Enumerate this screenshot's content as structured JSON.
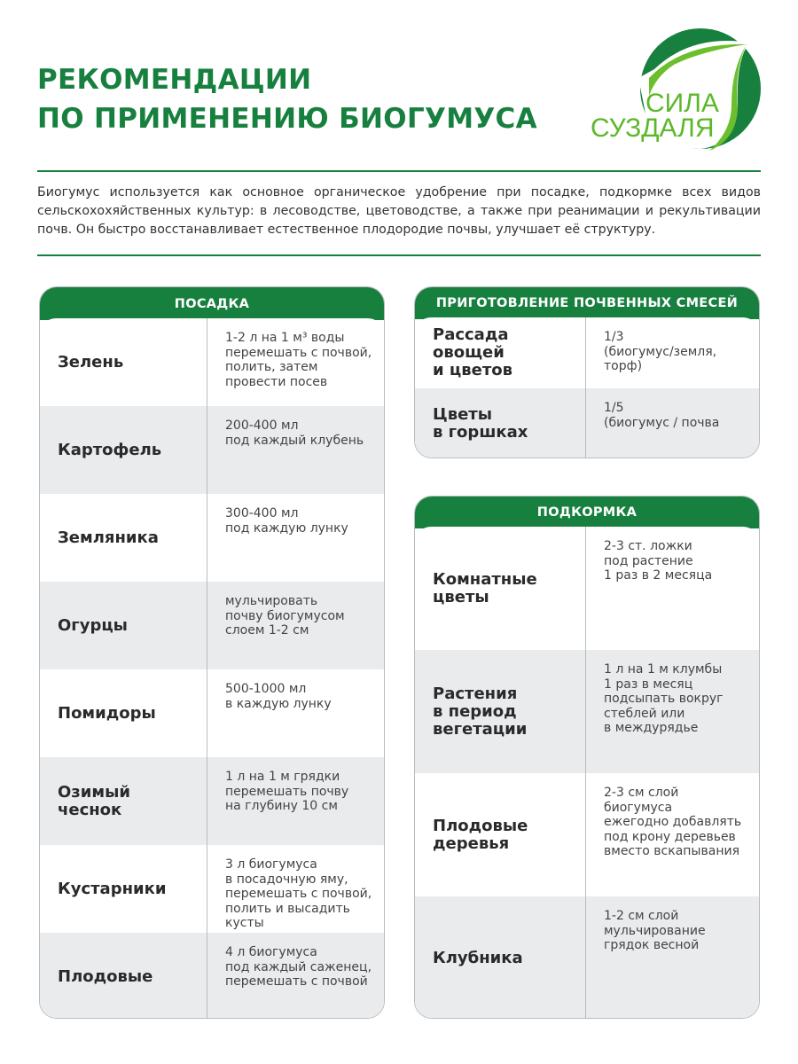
{
  "title": {
    "line1": "РЕКОМЕНДАЦИИ",
    "line2": "ПО ПРИМЕНЕНИЮ БИОГУМУСА"
  },
  "logo": {
    "line1": "СИЛА",
    "line2": "СУЗДАЛЯ",
    "colors": {
      "dark": "#17803f",
      "light": "#6cbf2c"
    }
  },
  "intro": "Биогумус используется как основное органическое удобрение при посадке, подкормке всех видов сельскохохяйственных культур: в лесоводстве, цветоводстве, а также при реанимации и рекультивации почв. Он быстро восстанавливает естественное плодородие почвы, улучшает её структуру.",
  "colors": {
    "accent": "#17803f",
    "row_alt": "#eaebed"
  },
  "planting": {
    "header": "ПОСАДКА",
    "rows": [
      {
        "crop": "Зелень",
        "dose": "1-2 л на 1 м³ воды\nперемешать с почвой,\nполить, затем\nпровести посев"
      },
      {
        "crop": "Картофель",
        "dose": "200-400 мл\nпод каждый клубень"
      },
      {
        "crop": "Земляника",
        "dose": "300-400 мл\nпод каждую лунку"
      },
      {
        "crop": "Огурцы",
        "dose": "мульчировать\nпочву биогумусом\nслоем 1-2 см"
      },
      {
        "crop": "Помидоры",
        "dose": "500-1000 мл\nв каждую лунку"
      },
      {
        "crop": "Озимый\nчеснок",
        "dose": "1 л на 1 м грядки\nперемешать почву\nна глубину 10 см"
      },
      {
        "crop": "Кустарники",
        "dose": "3 л биогумуса\nв посадочную яму,\nперемешать с почвой,\nполить и высадить\nкусты"
      },
      {
        "crop": "Плодовые",
        "dose": "4 л биогумуса\nпод каждый саженец,\nперемешать с почвой"
      }
    ]
  },
  "mixes": {
    "header": "ПРИГОТОВЛЕНИЕ ПОЧВЕННЫХ СМЕСЕЙ",
    "rows": [
      {
        "crop": "Рассада овощей\nи цветов",
        "dose": "1/3\n(биогумус/земля,\nторф)"
      },
      {
        "crop": "Цветы\nв горшках",
        "dose": "1/5\n(биогумус / почва"
      }
    ]
  },
  "feeding": {
    "header": "ПОДКОРМКА",
    "rows": [
      {
        "crop": "Комнатные\nцветы",
        "dose": "2-3 ст. ложки\nпод растение\n1 раз в 2 месяца"
      },
      {
        "crop": "Растения\nв период\nвегетации",
        "dose": "1 л на 1 м клумбы\n1 раз в месяц\nподсыпать вокруг\nстеблей или\nв междурядье"
      },
      {
        "crop": "Плодовые\nдеревья",
        "dose": "2-3 см слой\nбиогумуса\nежегодно добавлять\nпод крону деревьев\nвместо вскапывания"
      },
      {
        "crop": "Клубника",
        "dose": "1-2 см слой\nмульчирование\nгрядок весной"
      }
    ]
  }
}
